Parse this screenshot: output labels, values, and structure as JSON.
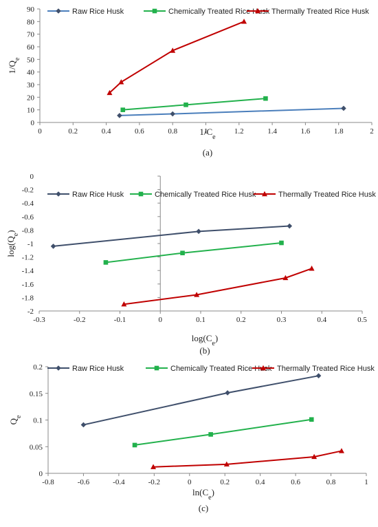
{
  "figure": {
    "panel_labels": [
      "(a)",
      "(b)",
      "(c)"
    ]
  },
  "chart_data": [
    {
      "type": "line",
      "title": "",
      "xlabel": "1/C",
      "xlabel_sub": "e",
      "ylabel": "1/Q",
      "ylabel_sub": "e",
      "xlim": [
        0,
        2
      ],
      "ylim": [
        0,
        90
      ],
      "xticks": [
        0,
        0.2,
        0.4,
        0.6,
        0.8,
        1,
        1.2,
        1.4,
        1.6,
        1.8,
        2
      ],
      "yticks": [
        0,
        10,
        20,
        30,
        40,
        50,
        60,
        70,
        80,
        90
      ],
      "grid": false,
      "legend_position": "top",
      "series": [
        {
          "name": "Raw Rice Husk",
          "color": "#4a7ebb",
          "marker": "diamond",
          "marker_color": "#3f4f6b",
          "x": [
            0.48,
            0.8,
            1.83
          ],
          "y": [
            5.5,
            6.8,
            11.2
          ]
        },
        {
          "name": "Chemically Treated Rice Husk",
          "color": "#22b14c",
          "marker": "square",
          "marker_color": "#22b14c",
          "x": [
            0.5,
            0.88,
            1.36
          ],
          "y": [
            10,
            14,
            19
          ]
        },
        {
          "name": "Thermally Treated Rice Husk",
          "color": "#c00000",
          "marker": "triangle",
          "marker_color": "#c00000",
          "x": [
            0.42,
            0.49,
            0.8,
            1.23
          ],
          "y": [
            23.5,
            32,
            57,
            80
          ]
        }
      ]
    },
    {
      "type": "line",
      "title": "",
      "xlabel": "log(C",
      "xlabel_sub": "e",
      "xlabel_close": ")",
      "ylabel": "log(Q",
      "ylabel_sub": "e",
      "ylabel_close": ")",
      "xlim": [
        -0.3,
        0.5
      ],
      "ylim": [
        -2,
        0
      ],
      "xticks": [
        -0.3,
        -0.2,
        -0.1,
        0,
        0.1,
        0.2,
        0.3,
        0.4,
        0.5
      ],
      "yticks": [
        0,
        -0.2,
        -0.4,
        -0.6,
        -0.8,
        -1,
        -1.2,
        -1.4,
        -1.6,
        -1.8,
        -2
      ],
      "grid": false,
      "legend_position": "top",
      "series": [
        {
          "name": "Raw Rice Husk",
          "color": "#3f4f6b",
          "marker": "diamond",
          "marker_color": "#3f4f6b",
          "x": [
            -0.265,
            0.095,
            0.32
          ],
          "y": [
            -1.04,
            -0.82,
            -0.74
          ]
        },
        {
          "name": "Chemically Treated Rice Husk",
          "color": "#22b14c",
          "marker": "square",
          "marker_color": "#22b14c",
          "x": [
            -0.135,
            0.055,
            0.3
          ],
          "y": [
            -1.28,
            -1.14,
            -0.99
          ]
        },
        {
          "name": "Thermally Treated Rice Husk",
          "color": "#c00000",
          "marker": "triangle",
          "marker_color": "#c00000",
          "x": [
            -0.09,
            0.09,
            0.31,
            0.375
          ],
          "y": [
            -1.9,
            -1.76,
            -1.51,
            -1.37
          ]
        }
      ]
    },
    {
      "type": "line",
      "title": "",
      "xlabel": "ln(C",
      "xlabel_sub": "e",
      "xlabel_close": ")",
      "ylabel": "Q",
      "ylabel_sub": "e",
      "xlim": [
        -0.8,
        1
      ],
      "ylim": [
        0,
        0.2
      ],
      "xticks": [
        -0.8,
        -0.6,
        -0.4,
        -0.2,
        0,
        0.2,
        0.4,
        0.6,
        0.8,
        1
      ],
      "yticks": [
        0,
        0.05,
        0.1,
        0.15,
        0.2
      ],
      "grid": false,
      "legend_position": "top",
      "series": [
        {
          "name": "Raw Rice Husk",
          "color": "#3f4f6b",
          "marker": "diamond",
          "marker_color": "#3f4f6b",
          "x": [
            -0.6,
            0.215,
            0.73
          ],
          "y": [
            0.091,
            0.151,
            0.183
          ]
        },
        {
          "name": "Chemically Treated Rice Husk",
          "color": "#22b14c",
          "marker": "square",
          "marker_color": "#22b14c",
          "x": [
            -0.31,
            0.12,
            0.69
          ],
          "y": [
            0.053,
            0.073,
            0.101
          ]
        },
        {
          "name": "Thermally Treated Rice Husk",
          "color": "#c00000",
          "marker": "triangle",
          "marker_color": "#c00000",
          "x": [
            -0.205,
            0.21,
            0.705,
            0.86
          ],
          "y": [
            0.012,
            0.017,
            0.031,
            0.042
          ]
        }
      ]
    }
  ]
}
